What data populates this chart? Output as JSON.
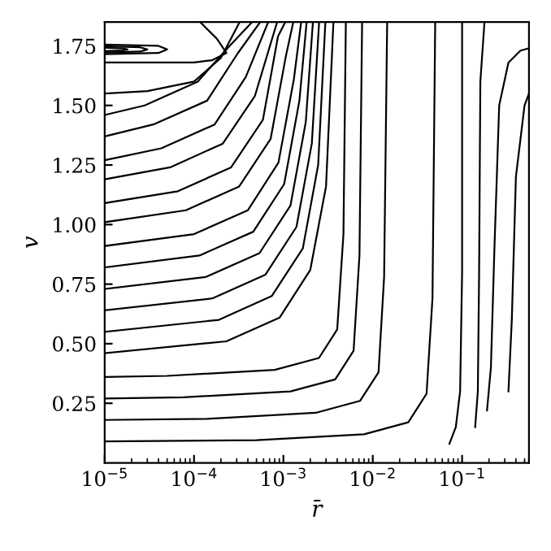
{
  "chart_data": {
    "type": "line",
    "xlabel": "r̄",
    "ylabel": "v",
    "log": "x",
    "xlim": [
      1e-05,
      0.56
    ],
    "ylim": [
      0,
      1.85
    ],
    "xticks": [
      {
        "value": 1e-05,
        "label": "10$^{−5}$"
      },
      {
        "value": 0.0001,
        "label": "10$^{−4}$"
      },
      {
        "value": 0.001,
        "label": "10$^{−3}$"
      },
      {
        "value": 0.01,
        "label": "10$^{−2}$"
      },
      {
        "value": 0.1,
        "label": "10$^{−1}$"
      }
    ],
    "yticks": [
      0.25,
      {
        "value": 0.5,
        "label": "0.50"
      },
      0.75,
      {
        "value": 1.0,
        "label": "1.00"
      },
      1.25,
      {
        "value": 1.5,
        "label": "1.50"
      },
      1.75
    ],
    "grid": false,
    "legend": false,
    "series": [
      {
        "color": "#000000",
        "x": [
          1e-05,
          0.0005,
          0.008,
          0.025,
          0.04,
          0.0466,
          0.05
        ],
        "values": [
          0.09,
          0.095,
          0.12,
          0.17,
          0.29,
          0.69,
          1.85
        ]
      },
      {
        "color": "#000000",
        "x": [
          1e-05,
          0.00014,
          0.0023,
          0.0072,
          0.0116,
          0.0134,
          0.0145
        ],
        "values": [
          0.18,
          0.185,
          0.21,
          0.26,
          0.38,
          0.78,
          1.85
        ]
      },
      {
        "color": "#000000",
        "x": [
          1e-05,
          7.6e-05,
          0.0012,
          0.0038,
          0.0061,
          0.0071,
          0.0076
        ],
        "values": [
          0.27,
          0.275,
          0.3,
          0.35,
          0.47,
          0.87,
          1.85
        ]
      },
      {
        "color": "#000000",
        "x": [
          1e-05,
          5e-05,
          0.0008,
          0.0025,
          0.004,
          0.0047,
          0.005
        ],
        "values": [
          0.36,
          0.365,
          0.39,
          0.44,
          0.56,
          0.96,
          1.85
        ]
      },
      {
        "color": "#000000",
        "x": [
          1e-05,
          0.00023,
          0.00091,
          0.002,
          0.003,
          0.00363
        ],
        "values": [
          0.46,
          0.51,
          0.61,
          0.81,
          1.16,
          1.85
        ]
      },
      {
        "color": "#000000",
        "x": [
          1e-05,
          0.00019,
          0.00074,
          0.00165,
          0.00245,
          0.00295
        ],
        "values": [
          0.55,
          0.6,
          0.7,
          0.9,
          1.25,
          1.85
        ]
      },
      {
        "color": "#000000",
        "x": [
          1e-05,
          0.00016,
          0.00063,
          0.0014,
          0.00208,
          0.00251
        ],
        "values": [
          0.64,
          0.69,
          0.79,
          0.99,
          1.34,
          1.85
        ]
      },
      {
        "color": "#000000",
        "x": [
          1e-05,
          0.000135,
          0.00054,
          0.0012,
          0.00178,
          0.00214
        ],
        "values": [
          0.73,
          0.78,
          0.88,
          1.08,
          1.43,
          1.85
        ]
      },
      {
        "color": "#000000",
        "x": [
          1e-05,
          0.000115,
          0.00046,
          0.00102,
          0.00151,
          0.00182
        ],
        "values": [
          0.82,
          0.87,
          0.97,
          1.17,
          1.52,
          1.85
        ]
      },
      {
        "color": "#000000",
        "x": [
          1e-05,
          0.0001,
          0.0004,
          0.00088,
          0.00131,
          0.00158
        ],
        "values": [
          0.91,
          0.96,
          1.06,
          1.26,
          1.61,
          1.85
        ]
      },
      {
        "color": "#000000",
        "x": [
          1e-05,
          8.1e-05,
          0.00032,
          0.00072,
          0.00107,
          0.00129
        ],
        "values": [
          1.01,
          1.06,
          1.16,
          1.36,
          1.71,
          1.85
        ]
      },
      {
        "color": "#000000",
        "x": [
          1e-05,
          6.6e-05,
          0.00026,
          0.00059,
          0.00087,
          0.00105
        ],
        "values": [
          1.09,
          1.14,
          1.24,
          1.44,
          1.79,
          1.85
        ]
      },
      {
        "color": "#000000",
        "x": [
          1e-05,
          5.4e-05,
          0.00021,
          0.00048,
          0.000851
        ],
        "values": [
          1.19,
          1.24,
          1.34,
          1.54,
          1.85
        ]
      },
      {
        "color": "#000000",
        "x": [
          1e-05,
          4.3e-05,
          0.00017,
          0.00038,
          0.000676
        ],
        "values": [
          1.27,
          1.32,
          1.42,
          1.62,
          1.85
        ]
      },
      {
        "color": "#000000",
        "x": [
          1e-05,
          3.5e-05,
          0.00014,
          0.00031,
          0.00055
        ],
        "values": [
          1.37,
          1.42,
          1.52,
          1.72,
          1.85
        ]
      },
      {
        "color": "#000000",
        "x": [
          1e-05,
          2.8e-05,
          0.00011,
          0.00025,
          0.000447
        ],
        "values": [
          1.46,
          1.5,
          1.6,
          1.75,
          1.85
        ]
      },
      {
        "color": "#000000",
        "x": [
          1e-05,
          3e-05,
          0.0001,
          0.0002,
          0.000324
        ],
        "values": [
          1.55,
          1.56,
          1.6,
          1.7,
          1.85
        ]
      },
      {
        "color": "#000000",
        "x": [
          0.000117,
          0.00018,
          0.00023,
          0.00016,
          0.0001,
          1e-05
        ],
        "values": [
          1.85,
          1.78,
          1.72,
          1.69,
          1.68,
          1.68
        ]
      },
      {
        "color": "#000000",
        "x": [
          1e-05,
          4e-05,
          5e-05,
          4e-05,
          1e-05
        ],
        "values": [
          1.715,
          1.72,
          1.735,
          1.75,
          1.755
        ]
      },
      {
        "color": "#000000",
        "x": [
          1e-05,
          2.5e-05,
          3e-05,
          2.5e-05,
          1e-05
        ],
        "values": [
          1.722,
          1.726,
          1.735,
          1.744,
          1.748
        ]
      },
      {
        "color": "#000000",
        "x": [
          1e-05,
          1.6e-05,
          1.8e-05,
          1.6e-05,
          1e-05
        ],
        "values": [
          1.728,
          1.731,
          1.735,
          1.739,
          1.742
        ]
      },
      {
        "color": "#000000",
        "x": [
          0.072,
          0.085,
          0.095,
          0.1,
          0.1
        ],
        "values": [
          0.08,
          0.15,
          0.3,
          0.8,
          1.85
        ]
      },
      {
        "color": "#000000",
        "x": [
          0.14,
          0.15,
          0.155,
          0.16,
          0.178
        ],
        "values": [
          0.15,
          0.3,
          0.8,
          1.6,
          1.85
        ]
      },
      {
        "color": "#000000",
        "x": [
          0.19,
          0.21,
          0.23,
          0.26,
          0.33,
          0.45,
          0.56
        ],
        "values": [
          0.22,
          0.4,
          0.9,
          1.5,
          1.68,
          1.73,
          1.74
        ]
      },
      {
        "color": "#000000",
        "x": [
          0.33,
          0.36,
          0.4,
          0.5,
          0.56
        ],
        "values": [
          0.3,
          0.6,
          1.2,
          1.5,
          1.55
        ]
      }
    ]
  }
}
